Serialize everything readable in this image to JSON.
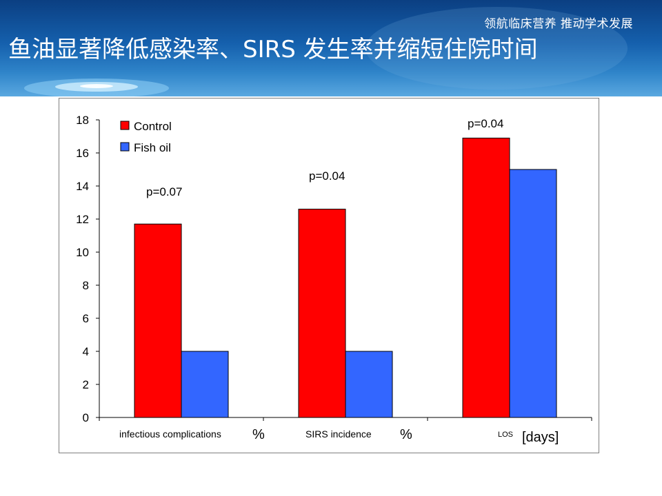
{
  "header": {
    "slogan": "领航临床营养 推动学术发展",
    "title": "鱼油显著降低感染率、SIRS 发生率并缩短住院时间"
  },
  "colors": {
    "control": "#ff0000",
    "fish_oil": "#3366ff",
    "banner": "#1560ad"
  },
  "chart_data": {
    "type": "bar",
    "title": "",
    "xlabel": "",
    "ylabel": "",
    "ylim": [
      0,
      18
    ],
    "yticks": [
      0,
      2,
      4,
      6,
      8,
      10,
      12,
      14,
      16,
      18
    ],
    "grid": false,
    "legend_position": "top-left",
    "categories": [
      "infectious complications",
      "SIRS incidence",
      "LOS"
    ],
    "category_units": [
      "%",
      "%",
      "[days]"
    ],
    "series": [
      {
        "name": "Control",
        "values": [
          11.7,
          12.6,
          16.9
        ]
      },
      {
        "name": "Fish oil",
        "values": [
          4.0,
          4.0,
          15.0
        ]
      }
    ],
    "annotations": [
      "p=0.07",
      "p=0.04",
      "p=0.04"
    ]
  }
}
